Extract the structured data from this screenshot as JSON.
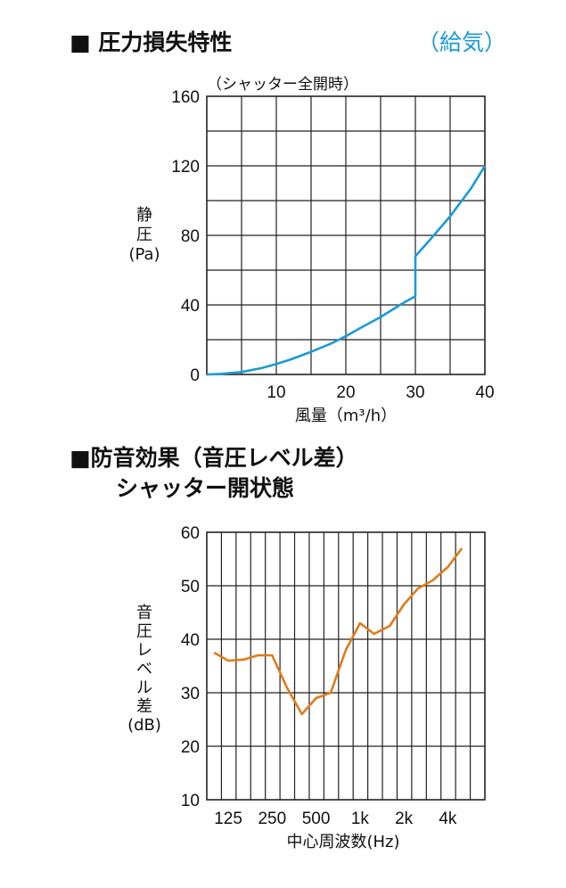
{
  "chart_data": [
    {
      "type": "line",
      "title": "■ 圧力損失特性",
      "subtitle": "（給気）",
      "note": "（シャッター全開時）",
      "xlabel": "風量（m³/h）",
      "ylabel_lines": [
        "静",
        "圧",
        "(Pa)"
      ],
      "xlim": [
        0,
        40
      ],
      "ylim": [
        0,
        160
      ],
      "x_ticks": [
        "10",
        "20",
        "30",
        "40"
      ],
      "y_ticks": [
        "0",
        "40",
        "80",
        "120",
        "160"
      ],
      "grid": true,
      "series": [
        {
          "color": "#1a9ad6",
          "x": [
            0,
            2,
            5,
            8,
            10,
            12,
            15,
            18,
            20,
            22,
            25,
            28,
            30,
            30,
            32,
            35,
            38,
            40
          ],
          "y": [
            0,
            0.3,
            1.4,
            3.8,
            6,
            8.5,
            13,
            18,
            22,
            26.5,
            33,
            40.5,
            45,
            68,
            77,
            91,
            107,
            120
          ]
        }
      ]
    },
    {
      "type": "line",
      "title": "■防音効果（音圧レベル差）",
      "subtitle": "シャッター開状態",
      "xlabel": "中心周波数(Hz)",
      "ylabel_lines": [
        "音",
        "圧",
        "レ",
        "ベ",
        "ル",
        "差",
        "(dB)"
      ],
      "ylim": [
        10,
        60
      ],
      "y_ticks": [
        "10",
        "20",
        "30",
        "40",
        "50",
        "60"
      ],
      "x_tick_labels": [
        "125",
        "250",
        "500",
        "1k",
        "2k",
        "4k"
      ],
      "grid": true,
      "series": [
        {
          "color": "#e07b1a",
          "x": [
            100,
            125,
            160,
            200,
            250,
            315,
            400,
            500,
            630,
            800,
            1000,
            1250,
            1600,
            2000,
            2500,
            3150,
            4000,
            5000
          ],
          "y": [
            37.5,
            36,
            36.2,
            37,
            37,
            31,
            26,
            29,
            30,
            38,
            43,
            41,
            42.5,
            46.5,
            49.5,
            51,
            53.5,
            57
          ]
        }
      ]
    }
  ]
}
